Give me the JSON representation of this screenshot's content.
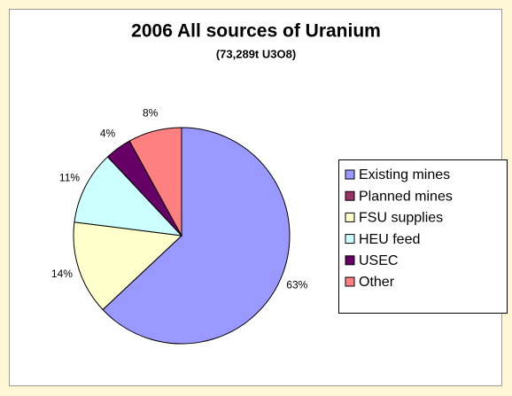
{
  "chart_data": {
    "type": "pie",
    "title": "2006 All sources of Uranium",
    "subtitle": "(73,289t U3O8)",
    "categories": [
      "Existing mines",
      "Planned mines",
      "FSU supplies",
      "HEU feed",
      "USEC",
      "Other"
    ],
    "values": [
      63,
      0,
      14,
      11,
      4,
      8
    ],
    "value_labels": [
      "63%",
      null,
      "14%",
      "11%",
      "4%",
      "8%"
    ],
    "colors": [
      "#9999ff",
      "#993366",
      "#ffffcc",
      "#ccffff",
      "#660066",
      "#ff8080"
    ],
    "legend": "right"
  }
}
